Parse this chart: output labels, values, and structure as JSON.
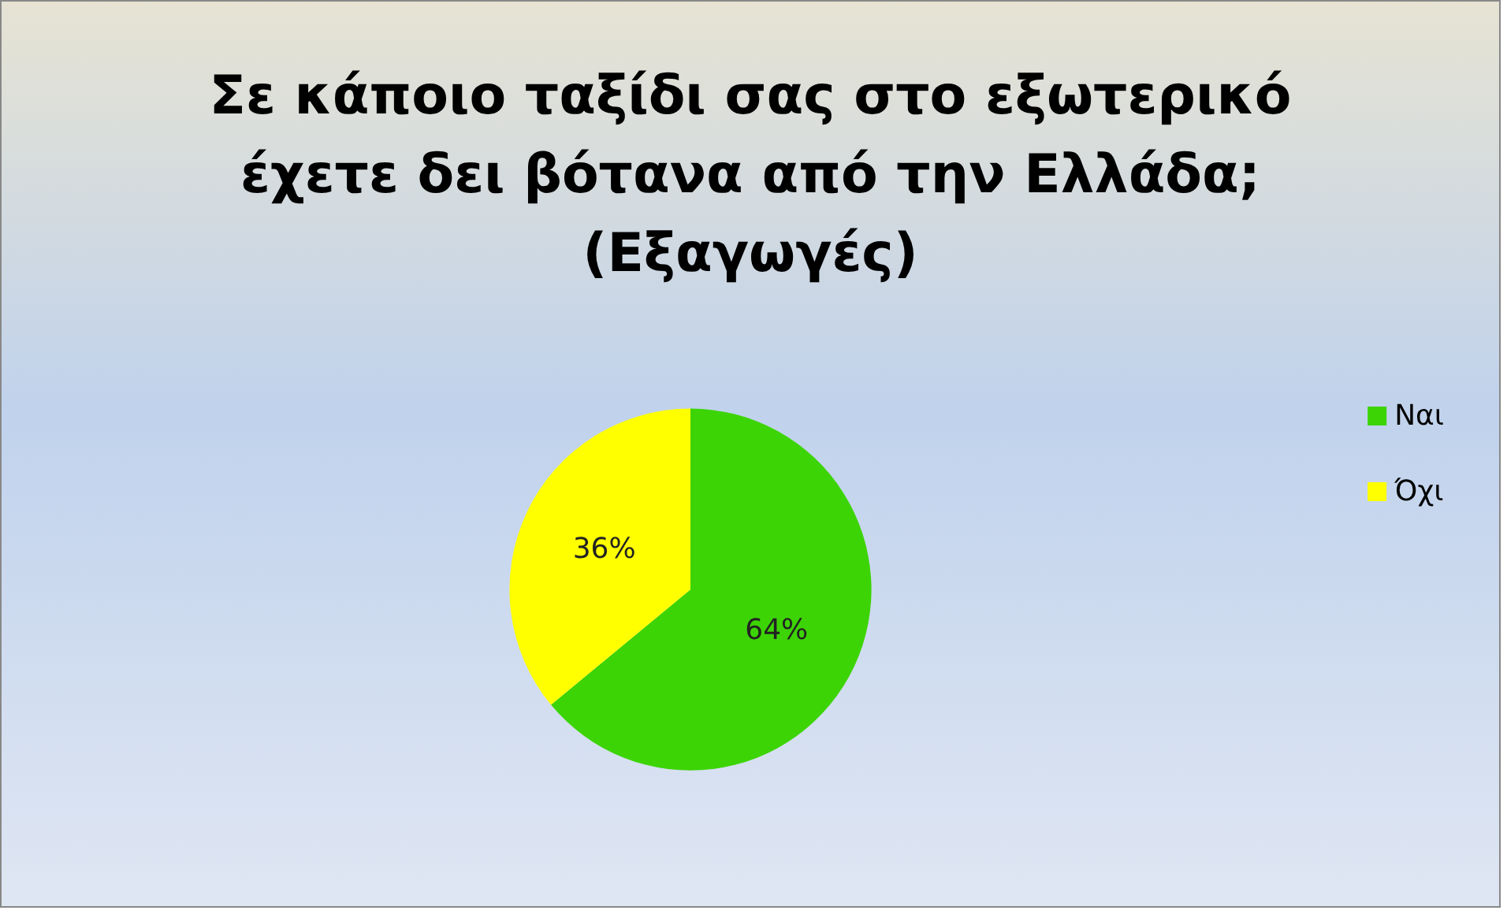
{
  "chart_data": {
    "type": "pie",
    "title": "Σε κάποιο ταξίδι σας στο εξωτερικό\nέχετε δει βότανα από την Ελλάδα;\n(Εξαγωγές)",
    "categories": [
      "Ναι",
      "Όχι"
    ],
    "values": [
      64,
      36
    ],
    "colors": [
      "#3dd406",
      "#ffff00"
    ],
    "value_labels": [
      "64%",
      "36%"
    ],
    "legend": "right"
  }
}
